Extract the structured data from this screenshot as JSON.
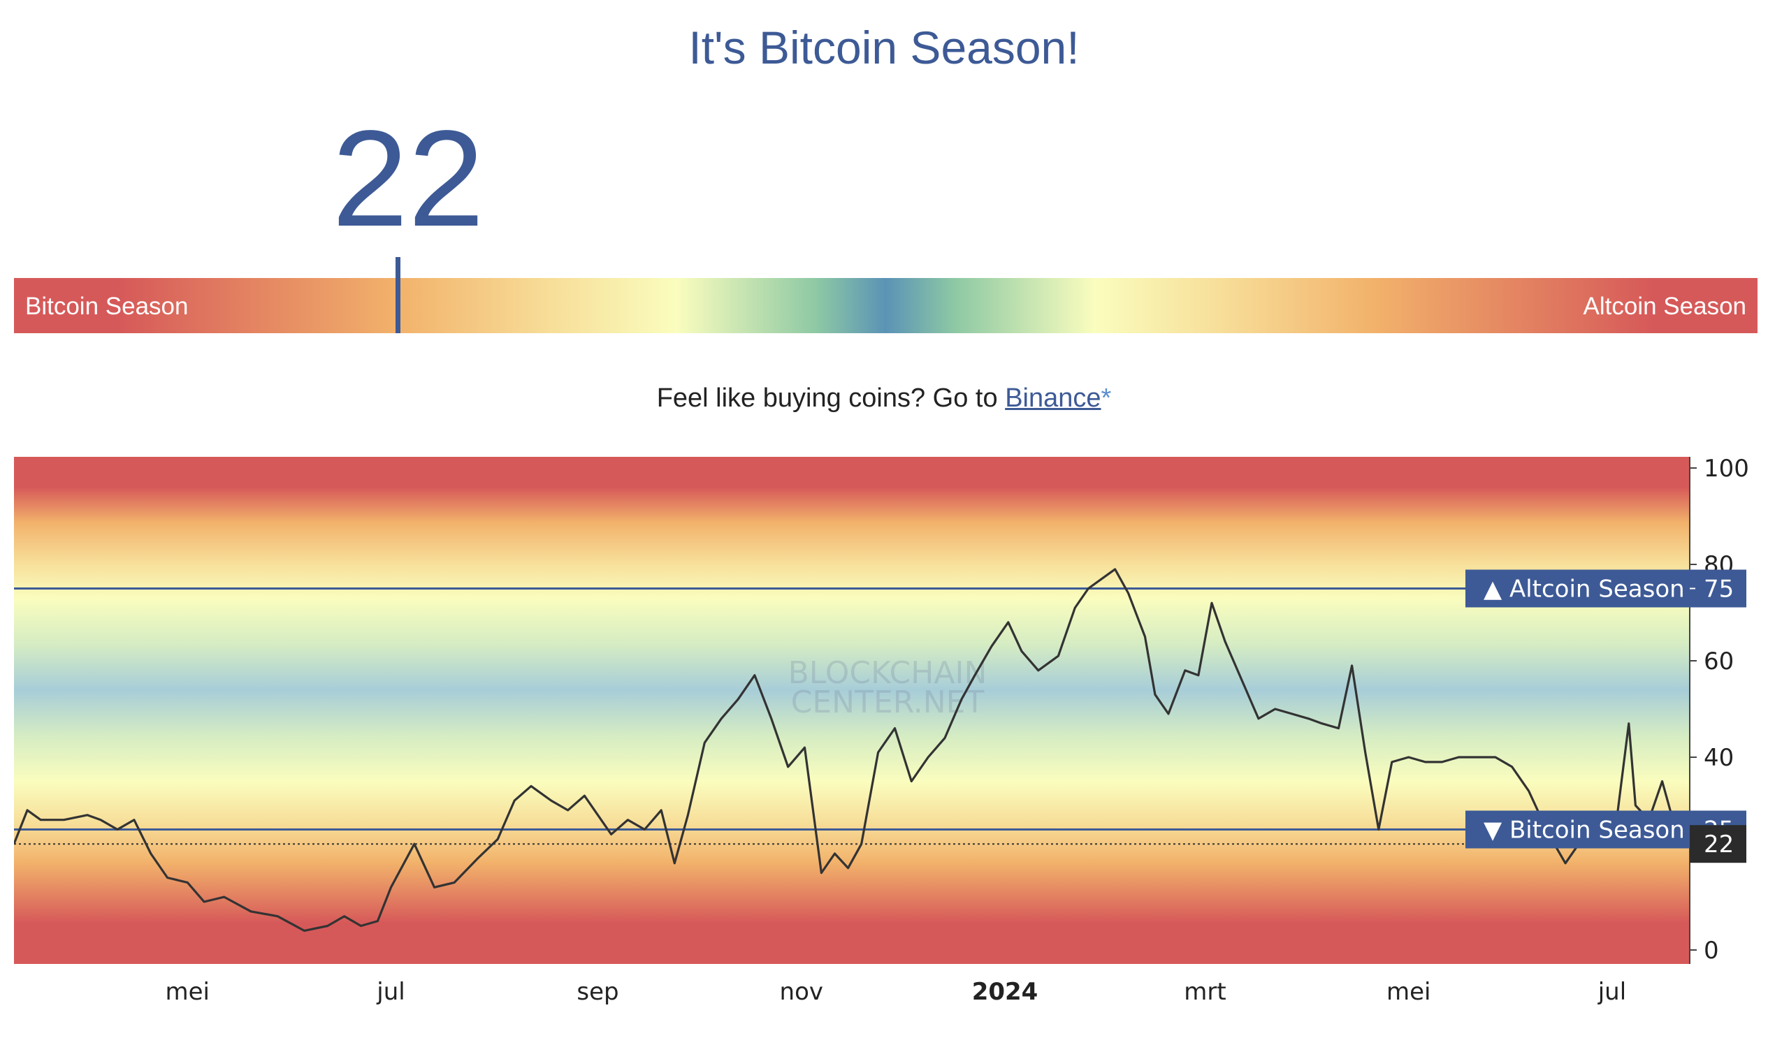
{
  "header": {
    "title": "It's Bitcoin Season!",
    "index_value": "22"
  },
  "gauge": {
    "left_label": "Bitcoin Season",
    "right_label": "Altcoin Season",
    "value": 22
  },
  "promo": {
    "text": "Feel like buying coins? Go to ",
    "link_text": "Binance",
    "link_suffix": "*"
  },
  "colors": {
    "brand": "#3d5a96",
    "bitcoin_season": "#d65959",
    "neutral": "#5b93b6",
    "line": "#333333"
  },
  "chart_data": {
    "type": "line",
    "ylim": [
      0,
      100
    ],
    "y_ticks": [
      "0",
      "20",
      "40",
      "60",
      "80",
      "100"
    ],
    "x_ticks": [
      "mei",
      "jul",
      "sep",
      "nov",
      "2024",
      "mrt",
      "mei",
      "jul"
    ],
    "x_ticks_bold": "2024",
    "x_range": [
      "2023-03-10",
      "2024-07-23"
    ],
    "x_tick_dates": [
      "2023-05-01",
      "2023-07-01",
      "2023-09-01",
      "2023-11-01",
      "2024-01-01",
      "2024-03-01",
      "2024-05-01",
      "2024-07-01"
    ],
    "thresholds": [
      {
        "label": "▲ Altcoin Season",
        "value": 75
      },
      {
        "label": "▼ Bitcoin Season",
        "value": 25
      }
    ],
    "current": {
      "value": 22,
      "label": "22"
    },
    "watermark": [
      "BLOCKCHAIN",
      "CENTER.NET"
    ],
    "series": [
      {
        "x": [
          "2023-03-10",
          "2023-03-14",
          "2023-03-18",
          "2023-03-25",
          "2023-04-01",
          "2023-04-05",
          "2023-04-10",
          "2023-04-15",
          "2023-04-20",
          "2023-04-25",
          "2023-05-01",
          "2023-05-06",
          "2023-05-12",
          "2023-05-20",
          "2023-05-28",
          "2023-06-05",
          "2023-06-12",
          "2023-06-17",
          "2023-06-22",
          "2023-06-27",
          "2023-07-01",
          "2023-07-08",
          "2023-07-14",
          "2023-07-20",
          "2023-07-27",
          "2023-08-02",
          "2023-08-07",
          "2023-08-12",
          "2023-08-18",
          "2023-08-23",
          "2023-08-28",
          "2023-09-01",
          "2023-09-05",
          "2023-09-10",
          "2023-09-15",
          "2023-09-20",
          "2023-09-24",
          "2023-09-28",
          "2023-10-03",
          "2023-10-08",
          "2023-10-13",
          "2023-10-18",
          "2023-10-23",
          "2023-10-28",
          "2023-11-02",
          "2023-11-07",
          "2023-11-11",
          "2023-11-15",
          "2023-11-19",
          "2023-11-24",
          "2023-11-29",
          "2023-12-04",
          "2023-12-09",
          "2023-12-14",
          "2023-12-19",
          "2023-12-23",
          "2023-12-28",
          "2024-01-02",
          "2024-01-06",
          "2024-01-11",
          "2024-01-17",
          "2024-01-22",
          "2024-01-26",
          "2024-01-30",
          "2024-02-03",
          "2024-02-07",
          "2024-02-12",
          "2024-02-15",
          "2024-02-19",
          "2024-02-24",
          "2024-02-28",
          "2024-03-03",
          "2024-03-07",
          "2024-03-12",
          "2024-03-17",
          "2024-03-22",
          "2024-03-27",
          "2024-04-01",
          "2024-04-05",
          "2024-04-10",
          "2024-04-14",
          "2024-04-18",
          "2024-04-22",
          "2024-04-26",
          "2024-05-01",
          "2024-05-06",
          "2024-05-11",
          "2024-05-16",
          "2024-05-22",
          "2024-05-27",
          "2024-06-01",
          "2024-06-06",
          "2024-06-12",
          "2024-06-17",
          "2024-06-21",
          "2024-06-26",
          "2024-07-02",
          "2024-07-06",
          "2024-07-08",
          "2024-07-12",
          "2024-07-16",
          "2024-07-20",
          "2024-07-23"
        ],
        "y": [
          22,
          29,
          27,
          27,
          28,
          27,
          25,
          27,
          20,
          15,
          14,
          10,
          11,
          8,
          7,
          4,
          5,
          7,
          5,
          6,
          13,
          22,
          13,
          14,
          19,
          23,
          31,
          34,
          31,
          29,
          32,
          28,
          24,
          27,
          25,
          29,
          18,
          28,
          43,
          48,
          52,
          57,
          48,
          38,
          42,
          16,
          20,
          17,
          22,
          41,
          46,
          35,
          40,
          44,
          52,
          57,
          63,
          68,
          62,
          58,
          61,
          71,
          75,
          77,
          79,
          74,
          65,
          53,
          49,
          58,
          57,
          72,
          64,
          56,
          48,
          50,
          49,
          48,
          47,
          46,
          59,
          41,
          25,
          39,
          40,
          39,
          39,
          40,
          40,
          40,
          38,
          33,
          24,
          18,
          22,
          22,
          25,
          47,
          30,
          27,
          35,
          25,
          22
        ]
      }
    ]
  }
}
